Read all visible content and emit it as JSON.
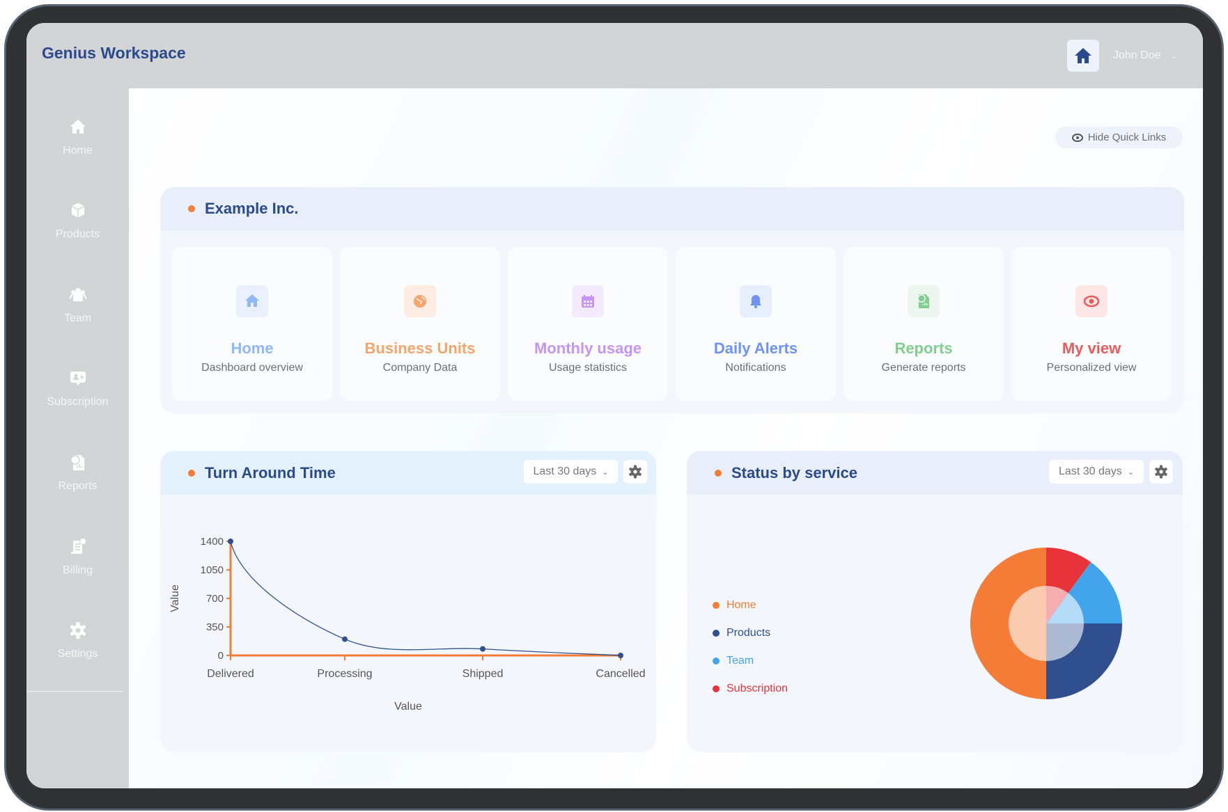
{
  "header": {
    "title": "Genius Workspace",
    "user_name": "John Doe"
  },
  "sidebar": {
    "items": [
      {
        "label": "Home",
        "icon": "home-icon"
      },
      {
        "label": "Products",
        "icon": "box-icon"
      },
      {
        "label": "Team",
        "icon": "users-icon"
      },
      {
        "label": "Subscription",
        "icon": "subscription-icon"
      },
      {
        "label": "Reports",
        "icon": "report-icon"
      },
      {
        "label": "Billing",
        "icon": "billing-icon"
      },
      {
        "label": "Settings",
        "icon": "gear-icon"
      }
    ]
  },
  "hide_quick_links": "Hide Quick Links",
  "company": {
    "name": "Example Inc.",
    "links": [
      {
        "title": "Home",
        "subtitle": "Dashboard overview",
        "color": "#8fb8f5",
        "bg": "#eaf1fd",
        "icon": "home-icon"
      },
      {
        "title": "Business Units",
        "subtitle": "Company Data",
        "color": "#f5a46b",
        "bg": "#fdece2",
        "icon": "globe-icon"
      },
      {
        "title": "Monthly usage",
        "subtitle": "Usage statistics",
        "color": "#c594f5",
        "bg": "#f3ebfd",
        "icon": "calendar-icon"
      },
      {
        "title": "Daily Alerts",
        "subtitle": "Notifications",
        "color": "#6f93f2",
        "bg": "#e7eefd",
        "icon": "bell-icon"
      },
      {
        "title": "Reports",
        "subtitle": "Generate reports",
        "color": "#7fd08f",
        "bg": "#eef7ef",
        "icon": "report-icon"
      },
      {
        "title": "My view",
        "subtitle": "Personalized view",
        "color": "#ea5b5b",
        "bg": "#fde6e6",
        "icon": "eye-icon"
      }
    ]
  },
  "turnaround": {
    "title": "Turn Around Time",
    "range": "Last 30 days"
  },
  "status": {
    "title": "Status by service",
    "range": "Last 30 days"
  },
  "chart_data": [
    {
      "type": "line",
      "title": "Turn Around Time",
      "categories": [
        "Delivered",
        "Processing",
        "Shipped",
        "Cancelled"
      ],
      "values": [
        1400,
        200,
        80,
        0
      ],
      "xlabel": "Value",
      "ylabel": "Value",
      "ylim": [
        0,
        1400
      ],
      "yticks": [
        "0",
        "350",
        "700",
        "1050",
        "1400"
      ],
      "axis_color": "#f47c36",
      "line_color": "#2f4f8f"
    },
    {
      "type": "pie",
      "title": "Status by service",
      "legend_placement": "left",
      "series": [
        {
          "name": "Subscription",
          "value": 10,
          "color": "#e8333a"
        },
        {
          "name": "Team",
          "value": 15,
          "color": "#42a5ec"
        },
        {
          "name": "Products",
          "value": 25,
          "color": "#2f4f8f"
        },
        {
          "name": "Home",
          "value": 50,
          "color": "#f47c36"
        }
      ],
      "legend": [
        {
          "name": "Home",
          "color": "#f47c36"
        },
        {
          "name": "Products",
          "color": "#2f4f8f"
        },
        {
          "name": "Team",
          "color": "#42a5ec"
        },
        {
          "name": "Subscription",
          "color": "#e8333a"
        }
      ]
    }
  ]
}
